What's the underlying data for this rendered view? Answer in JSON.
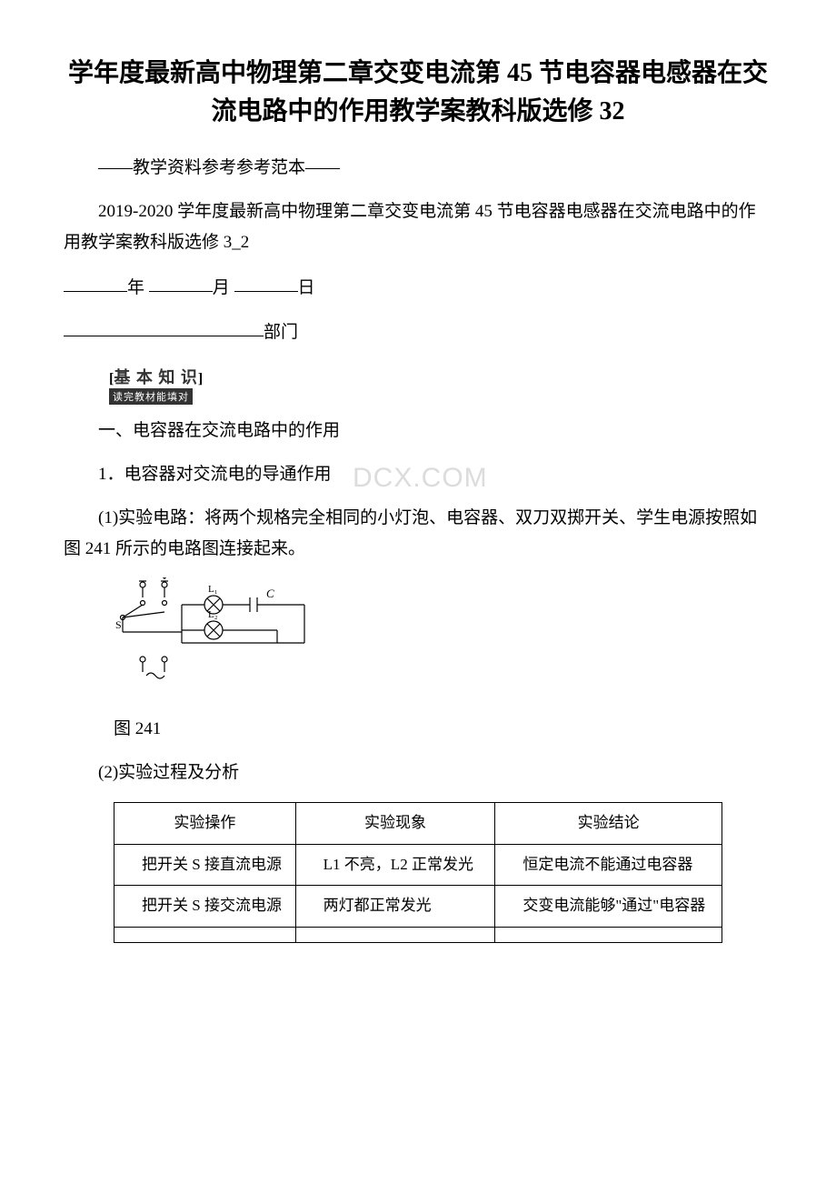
{
  "title": "学年度最新高中物理第二章交变电流第 45 节电容器电感器在交流电路中的作用教学案教科版选修 32",
  "subtitle_prefix": "——教学资料参考参考范本——",
  "intro": "2019-2020 学年度最新高中物理第二章交变电流第 45 节电容器电感器在交流电路中的作用教学案教科版选修 3_2",
  "date": {
    "year_label": "年",
    "month_label": "月",
    "day_label": "日"
  },
  "dept_label": "部门",
  "badge": {
    "top": "基 本 知 识",
    "sub": "读完教材能填对"
  },
  "section1_heading": "一、电容器在交流电路中的作用",
  "section1_sub1": "1．电容器对交流电的导通作用",
  "watermark_text": "DCX.COM",
  "section1_p1": "(1)实验电路：将两个规格完全相同的小灯泡、电容器、双刀双掷开关、学生电源按照如图 241 所示的电路图连接起来。",
  "circuit_labels": {
    "L1": "L₁",
    "L2": "L₂",
    "C": "C",
    "S": "S"
  },
  "fig_label": "图 241",
  "section1_p2": "(2)实验过程及分析",
  "table": {
    "headers": [
      "实验操作",
      "实验现象",
      "实验结论"
    ],
    "rows": [
      [
        "把开关 S 接直流电源",
        "L1 不亮，L2 正常发光",
        "恒定电流不能通过电容器"
      ],
      [
        "把开关 S 接交流电源",
        "两灯都正常发光",
        "交变电流能够\"通过\"电容器"
      ],
      [
        "",
        "",
        ""
      ]
    ],
    "col_widths": [
      "200px",
      "220px",
      "250px"
    ]
  },
  "colors": {
    "text": "#000000",
    "bg": "#ffffff",
    "watermark": "#dcdcdc",
    "badge_bg": "#333333"
  }
}
